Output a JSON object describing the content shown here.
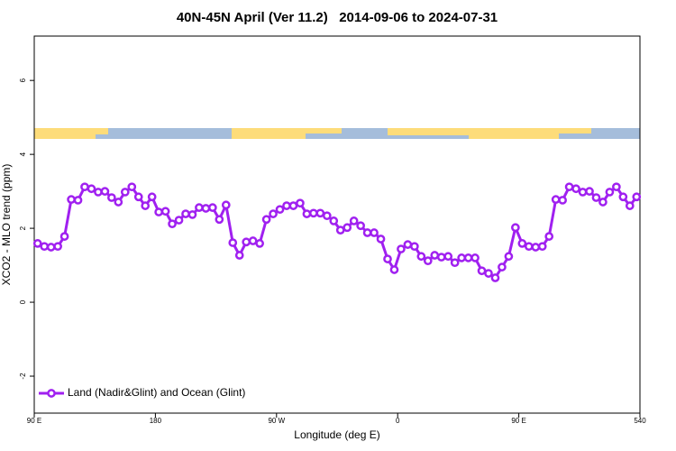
{
  "chart_data": {
    "type": "line",
    "title": "40N-45N April (Ver 11.2)   2014-09-06 to 2024-07-31",
    "xlabel": "Longitude (deg E)",
    "ylabel": "XCO2 - MLO trend (ppm)",
    "x": [
      92.5,
      97.5,
      102.5,
      107.5,
      112.5,
      117.5,
      122.5,
      127.5,
      132.5,
      137.5,
      142.5,
      147.5,
      152.5,
      157.5,
      162.5,
      167.5,
      172.5,
      177.5,
      182.5,
      187.5,
      192.5,
      197.5,
      202.5,
      207.5,
      212.5,
      217.5,
      222.5,
      227.5,
      232.5,
      237.5,
      242.5,
      247.5,
      252.5,
      257.5,
      262.5,
      267.5,
      272.5,
      277.5,
      282.5,
      287.5,
      292.5,
      297.5,
      302.5,
      307.5,
      312.5,
      317.5,
      322.5,
      327.5,
      332.5,
      337.5,
      342.5,
      347.5,
      352.5,
      357.5,
      362.5,
      367.5,
      372.5,
      377.5,
      382.5,
      387.5,
      392.5,
      397.5,
      402.5,
      407.5,
      412.5,
      417.5,
      422.5,
      427.5,
      432.5,
      437.5,
      442.5,
      447.5,
      452.5,
      457.5,
      462.5,
      467.5,
      472.5,
      477.5,
      482.5,
      487.5,
      492.5,
      497.5,
      502.5,
      507.5,
      512.5,
      517.5,
      522.5,
      527.5,
      532.5,
      537.5
    ],
    "series": [
      {
        "name": "Land (Nadir&Glint) and Ocean (Glint)",
        "color": "#a020f0",
        "values": [
          1.59,
          1.51,
          1.49,
          1.51,
          1.78,
          2.78,
          2.76,
          3.12,
          3.07,
          2.98,
          3.0,
          2.83,
          2.71,
          2.98,
          3.12,
          2.85,
          2.61,
          2.85,
          2.44,
          2.46,
          2.12,
          2.22,
          2.39,
          2.37,
          2.56,
          2.54,
          2.56,
          2.24,
          2.63,
          1.61,
          1.27,
          1.63,
          1.66,
          1.59,
          2.24,
          2.39,
          2.51,
          2.61,
          2.61,
          2.68,
          2.39,
          2.41,
          2.41,
          2.34,
          2.2,
          1.95,
          2.02,
          2.2,
          2.07,
          1.88,
          1.88,
          1.71,
          1.17,
          0.88,
          1.44,
          1.56,
          1.51,
          1.24,
          1.12,
          1.27,
          1.22,
          1.24,
          1.07,
          1.2,
          1.2,
          1.2,
          0.85,
          0.78,
          0.66,
          0.95,
          1.24,
          2.02,
          1.59,
          1.51,
          1.49,
          1.51,
          1.78,
          2.78,
          2.76,
          3.12,
          3.07,
          2.98,
          3.0,
          2.83,
          2.71,
          2.98,
          3.12,
          2.85,
          2.61,
          2.85
        ]
      }
    ],
    "xlim": [
      90,
      540
    ],
    "xticks": [
      {
        "value": 90,
        "label": "90 E"
      },
      180,
      {
        "value": 270,
        "label": "90 W"
      },
      {
        "value": 360,
        "label": "0"
      },
      {
        "value": 450,
        "label": "90 E"
      },
      540
    ],
    "ylim": [
      -3.0,
      7.2
    ],
    "yticks": [
      -2,
      0,
      2,
      4,
      6
    ],
    "legend": "bottom-left"
  }
}
